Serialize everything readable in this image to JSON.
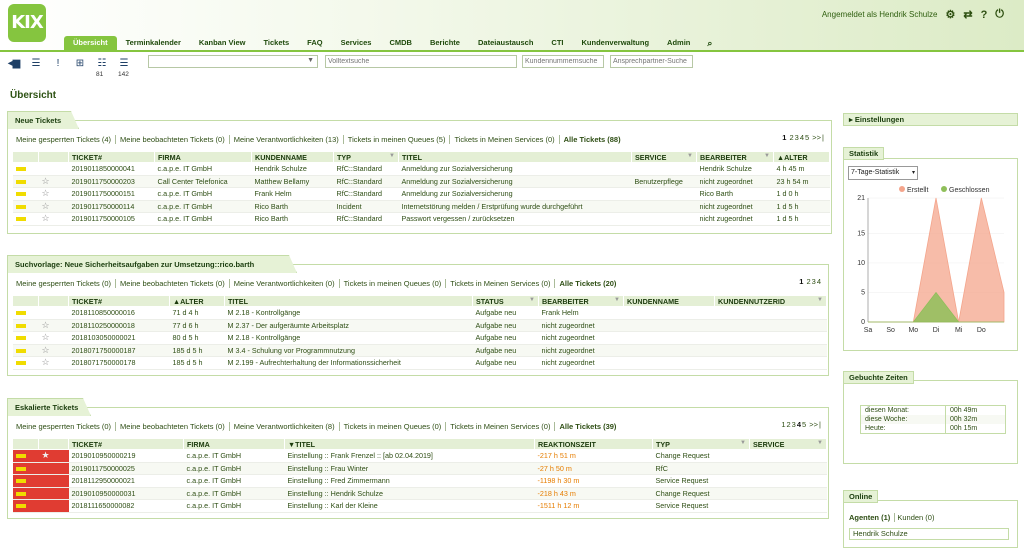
{
  "logo": "KIX",
  "user": {
    "logged_in_as": "Angemeldet als Hendrik Schulze"
  },
  "nav": {
    "items": [
      "Übersicht",
      "Terminkalender",
      "Kanban View",
      "Tickets",
      "FAQ",
      "Services",
      "CMDB",
      "Berichte",
      "Dateiaustausch",
      "CTI",
      "Kundenverwaltung",
      "Admin"
    ]
  },
  "toolbar": {
    "counts": [
      "81",
      "142"
    ],
    "fulltext_placeholder": "Volltextsuche",
    "customer_placeholder": "Kundennummernsuche",
    "contact_placeholder": "Ansprechpartner-Suche"
  },
  "page_title": "Übersicht",
  "new_tickets": {
    "title": "Neue Tickets",
    "filters": [
      "Meine gesperrten Tickets (4)",
      "Meine beobachteten Tickets (0)",
      "Meine Verantwortlichkeiten (13)",
      "Tickets in meinen Queues (5)",
      "Tickets in Meinen Services (0)",
      "Alle Tickets (88)"
    ],
    "pager": [
      "1",
      "2",
      "3",
      "4",
      "5",
      ">>",
      "|"
    ],
    "columns": [
      "TICKET#",
      "FIRMA",
      "KUNDENNAME",
      "TYP",
      "TITEL",
      "SERVICE",
      "BEARBEITER",
      "▲ALTER"
    ],
    "rows": [
      [
        "2019011850000041",
        "c.a.p.e. IT GmbH",
        "Hendrik Schulze",
        "RfC::Standard",
        "Anmeldung zur Sozialversicherung",
        "",
        "Hendrik Schulze",
        "4 h 45 m"
      ],
      [
        "2019011750000203",
        "Call Center Telefonica",
        "Matthew Bellamy",
        "RfC::Standard",
        "Anmeldung zur Sozialversicherung",
        "Benutzerpflege",
        "nicht zugeordnet",
        "23 h 54 m"
      ],
      [
        "2019011750000151",
        "c.a.p.e. IT GmbH",
        "Frank Helm",
        "RfC::Standard",
        "Anmeldung zur Sozialversicherung",
        "",
        "Rico Barth",
        "1 d 0 h"
      ],
      [
        "2019011750000114",
        "c.a.p.e. IT GmbH",
        "Rico Barth",
        "Incident",
        "Internetstörung melden / Erstprüfung wurde durchgeführt",
        "",
        "nicht zugeordnet",
        "1 d 5 h"
      ],
      [
        "2019011750000105",
        "c.a.p.e. IT GmbH",
        "Rico Barth",
        "RfC::Standard",
        "Passwort vergessen / zurücksetzen",
        "",
        "nicht zugeordnet",
        "1 d 5 h"
      ]
    ]
  },
  "search_template": {
    "title": "Suchvorlage: Neue Sicherheitsaufgaben zur Umsetzung::rico.barth",
    "filters": [
      "Meine gesperrten Tickets (0)",
      "Meine beobachteten Tickets (0)",
      "Meine Verantwortlichkeiten (0)",
      "Tickets in meinen Queues (0)",
      "Tickets in Meinen Services (0)",
      "Alle Tickets (20)"
    ],
    "pager": [
      "1",
      "2",
      "3",
      "4"
    ],
    "columns": [
      "TICKET#",
      "▲ALTER",
      "TITEL",
      "STATUS",
      "BEARBEITER",
      "KUNDENNAME",
      "KUNDENNUTZERID"
    ],
    "rows": [
      [
        "2018110850000016",
        "71 d 4 h",
        "M 2.18 - Kontrollgänge",
        "Aufgabe neu",
        "Frank Helm",
        "",
        ""
      ],
      [
        "2018110250000018",
        "77 d 6 h",
        "M 2.37 - Der aufgeräumte Arbeitsplatz",
        "Aufgabe neu",
        "nicht zugeordnet",
        "",
        ""
      ],
      [
        "2018103050000021",
        "80 d 5 h",
        "M 2.18 - Kontrollgänge",
        "Aufgabe neu",
        "nicht zugeordnet",
        "",
        ""
      ],
      [
        "2018071750000187",
        "185 d 5 h",
        "M 3.4 - Schulung vor Programmnutzung",
        "Aufgabe neu",
        "nicht zugeordnet",
        "",
        ""
      ],
      [
        "2018071750000178",
        "185 d 5 h",
        "M 2.199 - Aufrechterhaltung der Informationssicherheit",
        "Aufgabe neu",
        "nicht zugeordnet",
        "",
        ""
      ]
    ]
  },
  "escalated": {
    "title": "Eskalierte Tickets",
    "filters": [
      "Meine gesperrten Tickets (0)",
      "Meine beobachteten Tickets (0)",
      "Meine Verantwortlichkeiten (8)",
      "Tickets in meinen Queues (0)",
      "Tickets in Meinen Services (0)",
      "Alle Tickets (39)"
    ],
    "pager": [
      "1",
      "2",
      "3",
      "4",
      "5",
      ">>",
      "|"
    ],
    "columns": [
      "TICKET#",
      "FIRMA",
      "▼TITEL",
      "REAKTIONSZEIT",
      "TYP",
      "SERVICE"
    ],
    "rows": [
      [
        "2019010950000219",
        "c.a.p.e. IT GmbH",
        "Einstellung :: Frank Frenzel :: [ab 02.04.2019]",
        "-217 h 51 m",
        "Change Request",
        ""
      ],
      [
        "2019011750000025",
        "c.a.p.e. IT GmbH",
        "Einstellung :: Frau Winter",
        "-27 h 50 m",
        "RfC",
        ""
      ],
      [
        "2018112950000021",
        "c.a.p.e. IT GmbH",
        "Einstellung :: Fred Zimmermann",
        "-1198 h 30 m",
        "Service Request",
        ""
      ],
      [
        "2019010950000031",
        "c.a.p.e. IT GmbH",
        "Einstellung :: Hendrik Schulze",
        "-218 h 43 m",
        "Change Request",
        ""
      ],
      [
        "2018111650000082",
        "c.a.p.e. IT GmbH",
        "Einstellung :: Karl der Kleine",
        "-1511 h 12 m",
        "Service Request",
        ""
      ]
    ]
  },
  "sidebar": {
    "settings": "Einstellungen",
    "statistics": "Statistik",
    "stat_select": "7-Tage-Statistik",
    "booked_times": "Gebuchte Zeiten",
    "times": [
      [
        "diesen Monat:",
        "00h 49m"
      ],
      [
        "diese Woche:",
        "00h 32m"
      ],
      [
        "Heute:",
        "00h 15m"
      ]
    ],
    "online": "Online",
    "online_tabs": [
      "Agenten (1)",
      "Kunden (0)"
    ],
    "online_user": "Hendrik Schulze"
  },
  "chart_data": {
    "type": "area",
    "categories": [
      "Sa",
      "So",
      "Mo",
      "Di",
      "Mi",
      "Do",
      ""
    ],
    "series": [
      {
        "name": "Erstellt",
        "color": "#f4a58c",
        "values": [
          0,
          0,
          0,
          21,
          0,
          21,
          5
        ]
      },
      {
        "name": "Geschlossen",
        "color": "#8fbf5a",
        "values": [
          0,
          0,
          0,
          5,
          0,
          0,
          0
        ]
      }
    ],
    "yticks": [
      0,
      5,
      10,
      15,
      21
    ],
    "ylim": [
      0,
      21
    ]
  }
}
